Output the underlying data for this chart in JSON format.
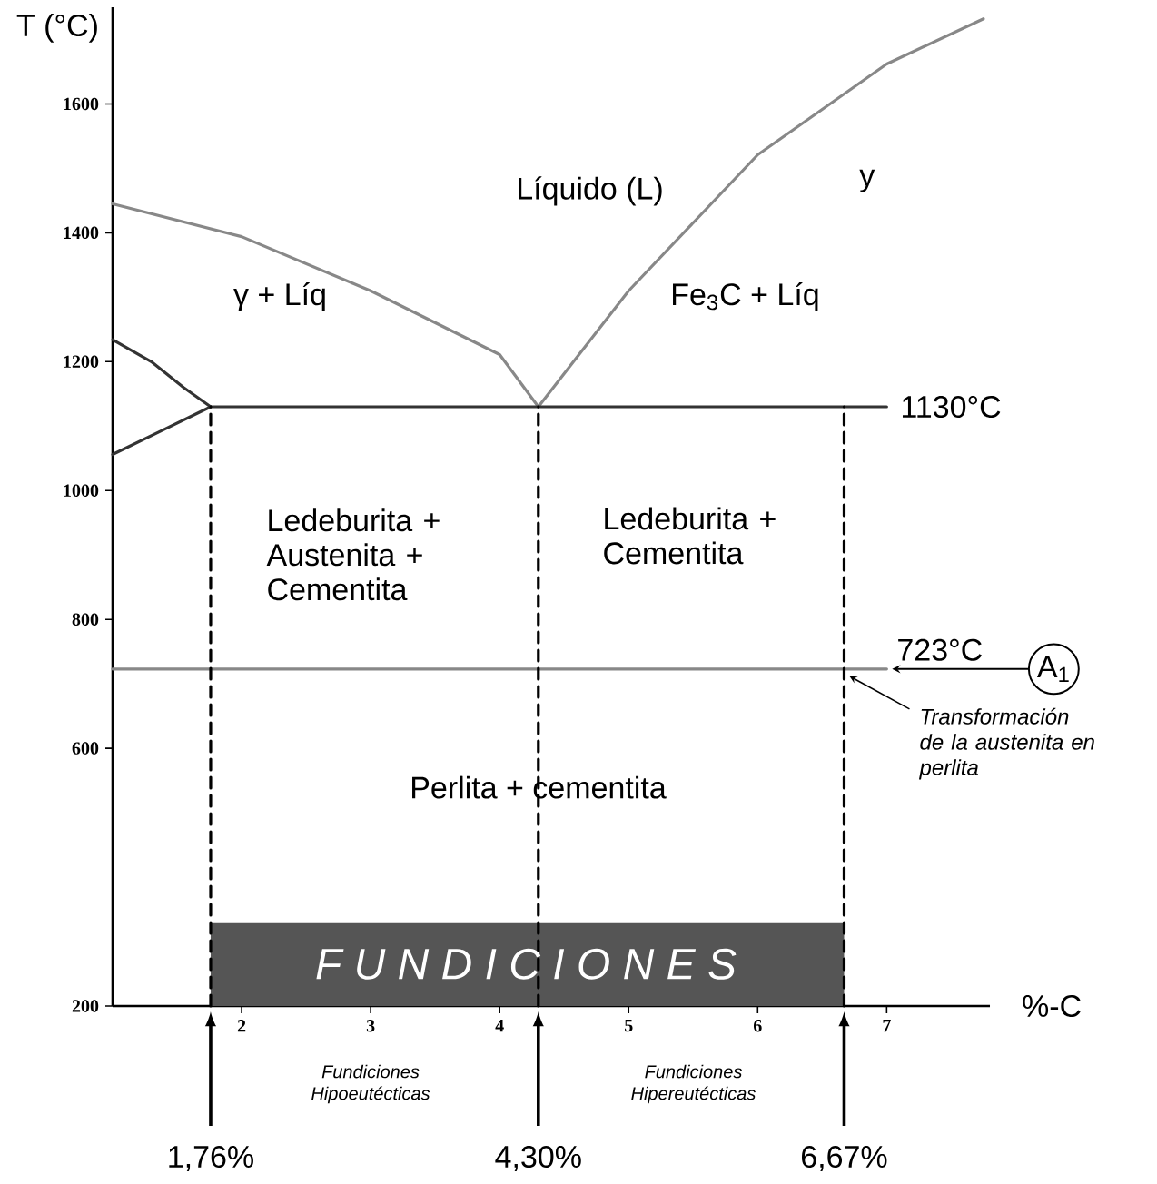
{
  "chart_data": {
    "type": "line",
    "xlabel": "%-C",
    "ylabel": "T (°C)",
    "xlim": [
      1,
      7.8
    ],
    "ylim": [
      200,
      1750
    ],
    "xticks": [
      2,
      3,
      4,
      5,
      6,
      7
    ],
    "yticks": [
      200,
      600,
      800,
      1000,
      1200,
      1400,
      1600
    ],
    "series": [
      {
        "type": "area",
        "color": "#555555",
        "x": [
          1.76,
          6.67
        ],
        "values": [
          330,
          330
        ]
      },
      {
        "color": "#888888",
        "x": [
          1.0,
          2.0,
          3.0,
          4.0,
          4.3
        ],
        "values": [
          1445,
          1394,
          1310,
          1211,
          1130
        ]
      },
      {
        "color": "#888888",
        "x": [
          4.3,
          5.0,
          6.0,
          7.0,
          7.75
        ],
        "values": [
          1130,
          1310,
          1521,
          1662,
          1732
        ]
      },
      {
        "color": "#333333",
        "x": [
          1.0,
          1.3,
          1.55,
          1.76
        ],
        "values": [
          1234,
          1200,
          1160,
          1130
        ]
      },
      {
        "color": "#333333",
        "x": [
          1.0,
          1.35,
          1.76
        ],
        "values": [
          1056,
          1090,
          1130
        ]
      },
      {
        "color": "#333333",
        "x": [
          1.76,
          7.0
        ],
        "values": [
          1130,
          1130
        ]
      },
      {
        "color": "#888888",
        "x": [
          1.0,
          7.0
        ],
        "values": [
          723,
          723
        ]
      },
      {
        "color": "#000000",
        "line_style": "dashed",
        "x": [
          1.76,
          1.76
        ],
        "values": [
          200,
          1130
        ]
      },
      {
        "color": "#000000",
        "line_style": "dashed",
        "x": [
          4.3,
          4.3
        ],
        "values": [
          200,
          1130
        ]
      },
      {
        "color": "#000000",
        "line_style": "dashed",
        "x": [
          6.67,
          6.67
        ],
        "values": [
          200,
          1130
        ]
      }
    ],
    "annotations": [
      "Líquido (L)",
      "y",
      "γ + Líq",
      "Fe$_{3}$C + Líq",
      "Ledeburita + Austenita + Cementita",
      "Ledeburita + Cementita",
      "Perlita + cementita",
      "F U N D I C I O N E S",
      {
        "text": "1130°C",
        "x": 7.0,
        "y": 1130
      },
      {
        "text": "723°C",
        "x": 7.0,
        "y": 723
      },
      "A$_{1}$",
      "Transformación de la austenita en perlita",
      "1,76%",
      "4,30%",
      "6,67%",
      "Fundiciones Hipoeutécticas",
      "Fundiciones Hipereutécticas"
    ]
  }
}
